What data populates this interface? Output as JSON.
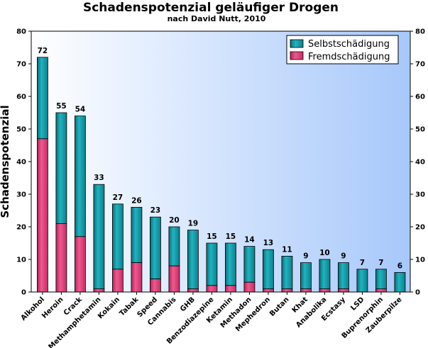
{
  "chart_data": {
    "type": "bar",
    "stacked": true,
    "title": "Schadenspotenzial geläufiger Drogen",
    "subtitle": "nach David Nutt, 2010",
    "xlabel": "",
    "ylabel": "Schadenspotenzial",
    "ylim": [
      0,
      80
    ],
    "yticks": [
      0,
      10,
      20,
      30,
      40,
      50,
      60,
      70,
      80
    ],
    "grid": false,
    "legend_position": "top-right",
    "categories": [
      "Alkohol",
      "Heroin",
      "Crack",
      "Methamphetamin",
      "Kokain",
      "Tabak",
      "Speed",
      "Cannabis",
      "GHB",
      "Benzodiazepine",
      "Ketamin",
      "Methadon",
      "Mephedron",
      "Butan",
      "Khat",
      "Anabolika",
      "Ecstasy",
      "LSD",
      "Buprenorphin",
      "Zauberpilze"
    ],
    "totals": [
      72,
      55,
      54,
      33,
      27,
      26,
      23,
      20,
      19,
      15,
      15,
      14,
      13,
      11,
      9,
      10,
      9,
      7,
      7,
      6
    ],
    "series": [
      {
        "name": "Fremdschädigung",
        "color": "#e0457b",
        "values": [
          47,
          21,
          17,
          1,
          7,
          9,
          4,
          8,
          1,
          2,
          2,
          3,
          1,
          1,
          1,
          1,
          1,
          0,
          1,
          0
        ]
      },
      {
        "name": "Selbstschädigung",
        "color": "#1a9aa8",
        "values": [
          25,
          34,
          37,
          32,
          20,
          17,
          19,
          12,
          18,
          13,
          13,
          11,
          12,
          10,
          8,
          9,
          8,
          7,
          6,
          6
        ]
      }
    ],
    "background_colors": [
      "#ffffff",
      "#a7c8fb"
    ]
  }
}
